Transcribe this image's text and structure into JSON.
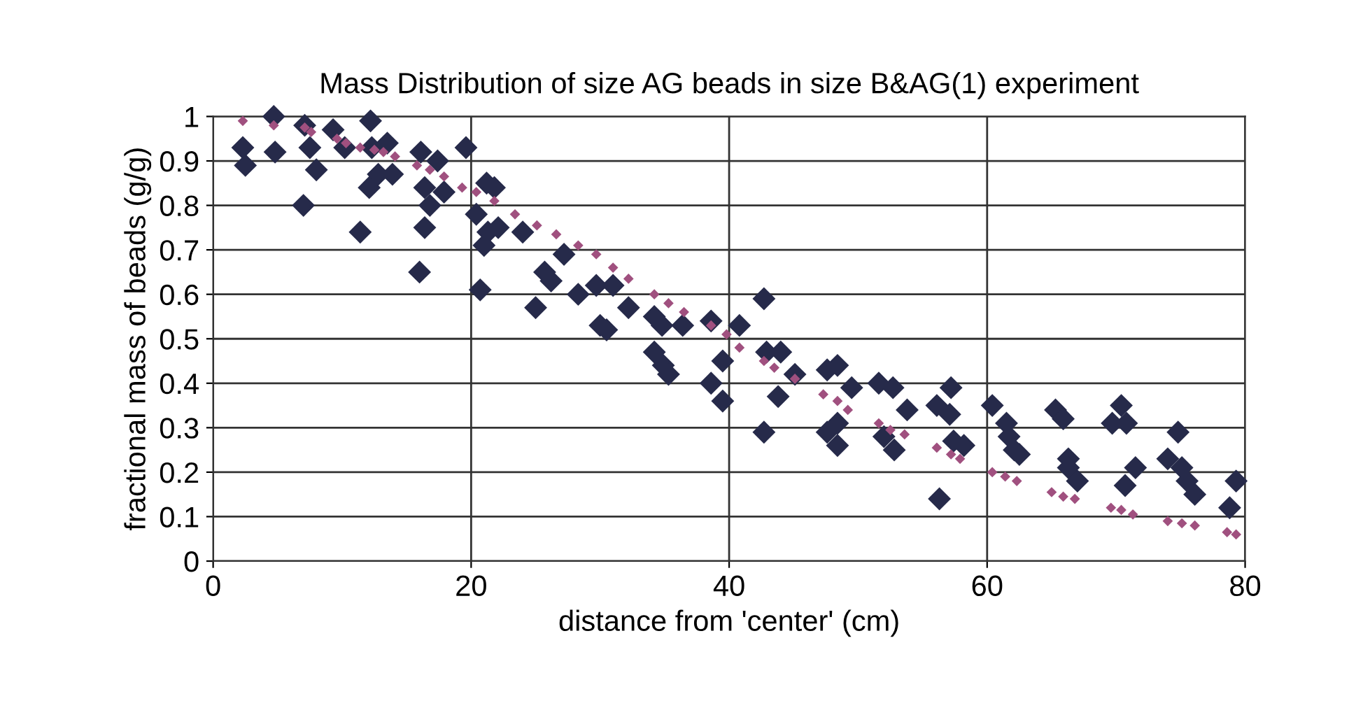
{
  "chart_data": {
    "type": "scatter",
    "title": "Mass Distribution of size AG beads in size B&AG(1) experiment",
    "xlabel": "distance from 'center' (cm)",
    "ylabel": "fractional mass of beads (g/g)",
    "xlim": [
      0,
      80
    ],
    "xticks": [
      0,
      20,
      40,
      60,
      80
    ],
    "ylim": [
      0,
      1
    ],
    "yticks": [
      0,
      0.1,
      0.2,
      0.3,
      0.4,
      0.5,
      0.6,
      0.7,
      0.8,
      0.9,
      1
    ],
    "grid": true,
    "legend": false,
    "marker": "diamond",
    "series": [
      {
        "color": "#262a4a",
        "x": [
          2.3,
          2.5,
          4.7,
          4.8,
          7.1,
          7.5,
          8.0,
          7.0,
          9.3,
          10.2,
          12.2,
          12.3,
          13.5,
          12.8,
          12.1,
          13.9,
          11.4,
          16.1,
          17.4,
          16.4,
          17.9,
          16.8,
          16.4,
          16.0,
          19.6,
          21.2,
          21.8,
          20.4,
          21.3,
          21.0,
          20.7,
          22.1,
          24.0,
          27.2,
          25.7,
          26.2,
          25.0,
          28.3,
          29.7,
          31.0,
          32.2,
          30.0,
          30.5,
          34.2,
          34.8,
          36.4,
          34.2,
          34.9,
          35.3,
          38.6,
          40.8,
          39.5,
          38.6,
          39.5,
          42.7,
          42.9,
          42.7,
          44.0,
          45.1,
          43.8,
          47.6,
          48.4,
          49.5,
          47.6,
          48.4,
          48.4,
          51.6,
          52.7,
          53.8,
          52.0,
          52.8,
          57.2,
          56.1,
          57.1,
          57.4,
          58.2,
          56.3,
          60.4,
          61.5,
          61.7,
          62.1,
          62.5,
          65.3,
          65.9,
          66.3,
          66.3,
          67.0,
          70.4,
          69.7,
          70.8,
          71.5,
          70.7,
          74.8,
          74.0,
          75.1,
          75.5,
          76.1,
          79.3,
          78.8
        ],
        "values": [
          0.93,
          0.89,
          1.0,
          0.92,
          0.98,
          0.93,
          0.88,
          0.8,
          0.97,
          0.93,
          0.99,
          0.93,
          0.94,
          0.87,
          0.84,
          0.87,
          0.74,
          0.92,
          0.9,
          0.84,
          0.83,
          0.8,
          0.75,
          0.65,
          0.93,
          0.85,
          0.84,
          0.78,
          0.74,
          0.71,
          0.61,
          0.75,
          0.74,
          0.69,
          0.65,
          0.63,
          0.57,
          0.6,
          0.62,
          0.62,
          0.57,
          0.53,
          0.52,
          0.55,
          0.53,
          0.53,
          0.47,
          0.44,
          0.42,
          0.54,
          0.53,
          0.45,
          0.4,
          0.36,
          0.59,
          0.47,
          0.29,
          0.47,
          0.42,
          0.37,
          0.43,
          0.44,
          0.39,
          0.29,
          0.26,
          0.31,
          0.4,
          0.39,
          0.34,
          0.28,
          0.25,
          0.39,
          0.35,
          0.33,
          0.27,
          0.26,
          0.14,
          0.35,
          0.31,
          0.28,
          0.25,
          0.24,
          0.34,
          0.32,
          0.23,
          0.21,
          0.18,
          0.35,
          0.31,
          0.31,
          0.21,
          0.17,
          0.29,
          0.23,
          0.21,
          0.18,
          0.15,
          0.18,
          0.12
        ]
      },
      {
        "color": "#a0507f",
        "x": [
          2.3,
          4.7,
          7.1,
          7.6,
          9.6,
          10.3,
          11.4,
          12.5,
          13.2,
          14.1,
          15.8,
          16.8,
          17.9,
          19.3,
          20.4,
          21.8,
          23.4,
          25.1,
          26.6,
          28.3,
          29.7,
          31.0,
          32.2,
          34.2,
          35.3,
          36.5,
          38.6,
          39.8,
          40.8,
          42.7,
          43.5,
          45.1,
          47.3,
          48.4,
          49.2,
          51.6,
          52.5,
          53.6,
          56.1,
          57.2,
          57.9,
          60.4,
          61.4,
          62.3,
          65.0,
          65.9,
          66.8,
          69.6,
          70.4,
          71.3,
          74.0,
          75.1,
          76.1,
          78.6,
          79.3
        ],
        "values": [
          0.99,
          0.98,
          0.975,
          0.965,
          0.95,
          0.94,
          0.93,
          0.925,
          0.92,
          0.91,
          0.89,
          0.88,
          0.865,
          0.84,
          0.83,
          0.81,
          0.78,
          0.755,
          0.735,
          0.71,
          0.69,
          0.66,
          0.635,
          0.6,
          0.58,
          0.56,
          0.53,
          0.51,
          0.48,
          0.45,
          0.435,
          0.41,
          0.375,
          0.36,
          0.34,
          0.31,
          0.295,
          0.285,
          0.255,
          0.24,
          0.23,
          0.2,
          0.19,
          0.18,
          0.155,
          0.145,
          0.14,
          0.12,
          0.115,
          0.105,
          0.09,
          0.085,
          0.08,
          0.065,
          0.06
        ]
      }
    ]
  }
}
